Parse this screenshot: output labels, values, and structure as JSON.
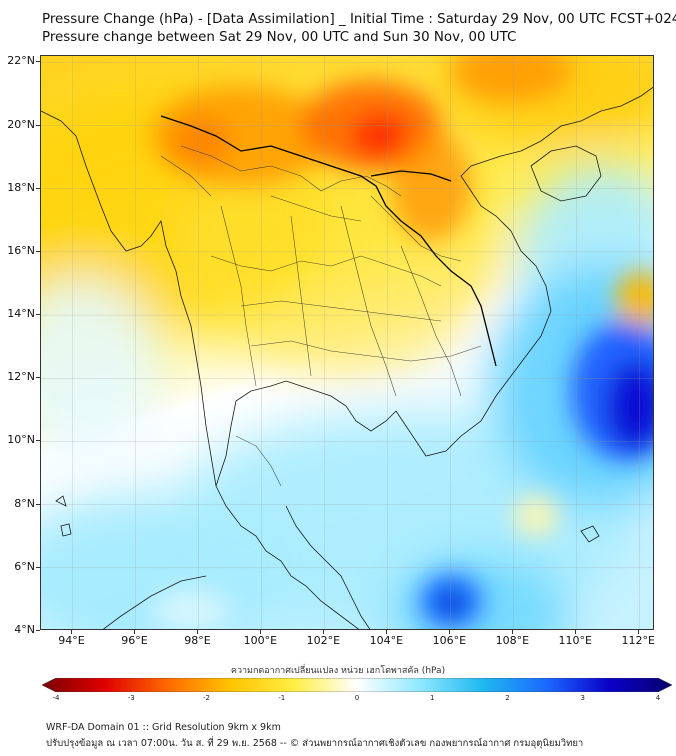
{
  "title": {
    "line1": "Pressure Change (hPa) - [Data Assimilation] _ Initial Time : Saturday 29 Nov, 00 UTC FCST+024",
    "line2": "Pressure change between Sat 29 Nov, 00 UTC and Sun 30 Nov, 00 UTC"
  },
  "map": {
    "lon_range": [
      93,
      112.5
    ],
    "lat_range": [
      4,
      22.2
    ],
    "x_ticks": [
      "94°E",
      "96°E",
      "98°E",
      "100°E",
      "102°E",
      "104°E",
      "106°E",
      "108°E",
      "110°E",
      "112°E"
    ],
    "x_tick_values": [
      94,
      96,
      98,
      100,
      102,
      104,
      106,
      108,
      110,
      112
    ],
    "y_ticks": [
      "22°N",
      "20°N",
      "18°N",
      "16°N",
      "14°N",
      "12°N",
      "10°N",
      "8°N",
      "6°N",
      "4°N"
    ],
    "y_tick_values": [
      22,
      20,
      18,
      16,
      14,
      12,
      10,
      8,
      6,
      4
    ]
  },
  "colorbar": {
    "label": "ความกดอากาศเปลี่ยนแปลง หน่วย เฮกโตพาสคัล (hPa)",
    "range": [
      -4,
      4
    ],
    "ticks": [
      "-4",
      "-3",
      "-2",
      "-1",
      "0",
      "1",
      "2",
      "3",
      "4"
    ],
    "tick_values": [
      -4,
      -3,
      -2,
      -1,
      0,
      1,
      2,
      3,
      4
    ],
    "colors": [
      "#7a0000",
      "#e00000",
      "#ff6a00",
      "#ffc400",
      "#ffee44",
      "#ffffff",
      "#8fe8ff",
      "#1eb8f0",
      "#1a6aff",
      "#0a00c8",
      "#08006e"
    ]
  },
  "footer": {
    "line1": "WRF-DA Domain 01 :: Grid Resolution 9km x 9km",
    "line2": "ปรับปรุงข้อมูล ณ เวลา 07:00น. วัน ส. ที่ 29 พ.ย. 2568 -- © ส่วนพยากรณ์อากาศเชิงตัวเลข กองพยากรณ์อากาศ กรมอุตุนิยมวิทยา"
  }
}
